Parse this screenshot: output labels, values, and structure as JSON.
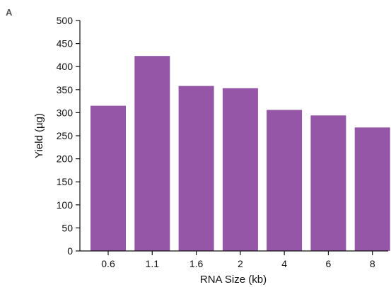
{
  "panel_label": "A",
  "colors": {
    "bar": "#9656A7",
    "axis": "#111111"
  },
  "chart_data": {
    "type": "bar",
    "categories": [
      "0.6",
      "1.1",
      "1.6",
      "2",
      "4",
      "6",
      "8"
    ],
    "values": [
      315,
      423,
      358,
      353,
      306,
      294,
      268
    ],
    "xlabel": "RNA Size (kb)",
    "ylabel": "Yield (µg)",
    "ylim": [
      0,
      500
    ],
    "yticks": [
      "0",
      "50",
      "100",
      "150",
      "200",
      "250",
      "300",
      "350",
      "400",
      "450",
      "500"
    ],
    "grid": false,
    "legend": "none"
  }
}
